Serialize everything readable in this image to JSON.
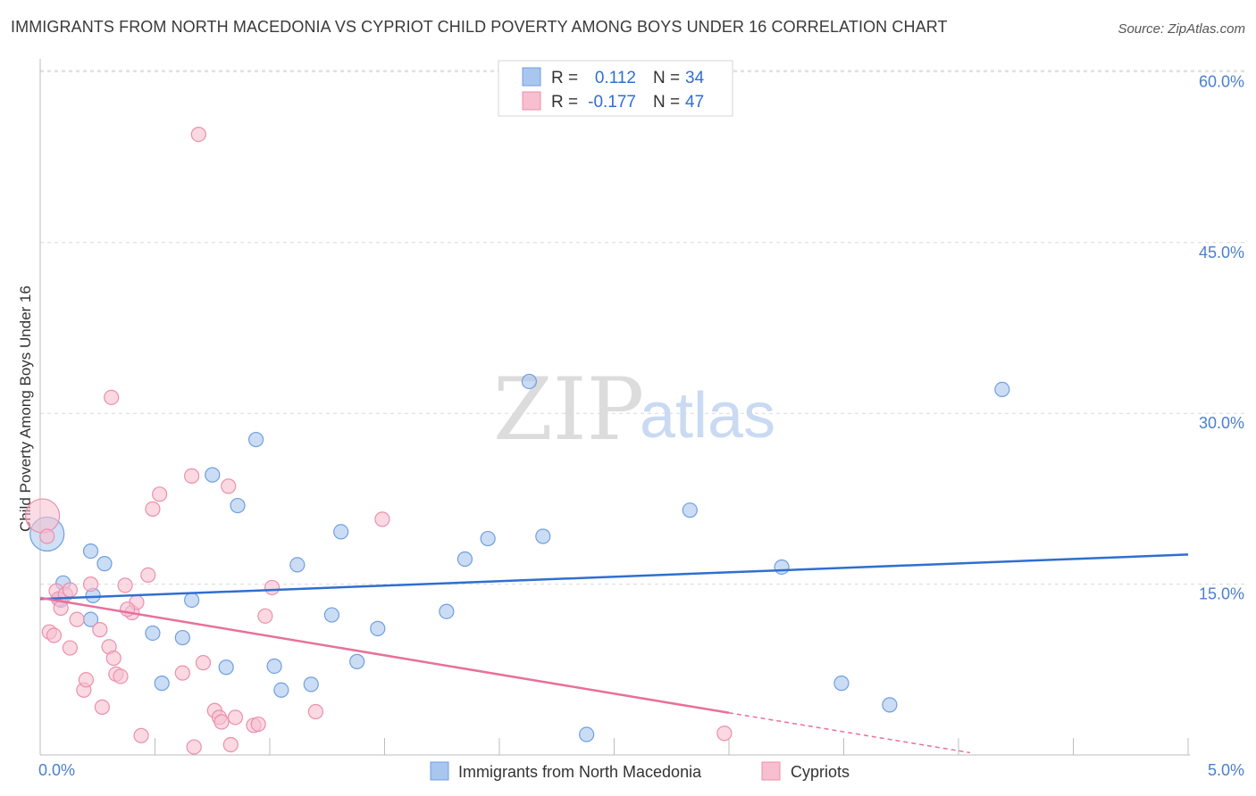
{
  "title": "IMMIGRANTS FROM NORTH MACEDONIA VS CYPRIOT CHILD POVERTY AMONG BOYS UNDER 16 CORRELATION CHART",
  "source": "Source: ZipAtlas.com",
  "watermark": {
    "zip": "ZIP",
    "atlas": "atlas"
  },
  "legend": {
    "rows": [
      {
        "r_label": "R =",
        "r_value": "0.112",
        "n_label": "N =",
        "n_value": "34",
        "color": "#a9c6ef",
        "stroke": "#6f9fe0"
      },
      {
        "r_label": "R =",
        "r_value": "-0.177",
        "n_label": "N =",
        "n_value": "47",
        "color": "#f7bfd0",
        "stroke": "#ec8fac"
      }
    ]
  },
  "chart_data": {
    "type": "scatter",
    "title": "IMMIGRANTS FROM NORTH MACEDONIA VS CYPRIOT CHILD POVERTY AMONG BOYS UNDER 16 CORRELATION CHART",
    "xlabel": "",
    "ylabel": "Child Poverty Among Boys Under 16",
    "xlim": [
      0,
      5
    ],
    "ylim": [
      0,
      60
    ],
    "x_tick_labels": [
      "0.0%",
      "5.0%"
    ],
    "y_ticks": [
      15,
      30,
      45,
      60
    ],
    "y_tick_labels": [
      "15.0%",
      "30.0%",
      "45.0%",
      "60.0%"
    ],
    "series": [
      {
        "name": "Immigrants from North Macedonia",
        "color": "#a9c6ef",
        "stroke": "#6f9fe0",
        "line_color": "#2f6fd0",
        "trend": {
          "x0": 0,
          "y0": 13.7,
          "x1": 5,
          "y1": 17.6
        },
        "points": [
          {
            "x": 0.03,
            "y": 19.4,
            "big": true
          },
          {
            "x": 0.1,
            "y": 15.1
          },
          {
            "x": 0.09,
            "y": 13.6
          },
          {
            "x": 0.22,
            "y": 17.9
          },
          {
            "x": 0.28,
            "y": 16.8
          },
          {
            "x": 0.23,
            "y": 14.0
          },
          {
            "x": 0.22,
            "y": 11.9
          },
          {
            "x": 0.49,
            "y": 10.7
          },
          {
            "x": 0.62,
            "y": 10.3
          },
          {
            "x": 0.53,
            "y": 6.3
          },
          {
            "x": 0.66,
            "y": 13.6
          },
          {
            "x": 0.75,
            "y": 24.6
          },
          {
            "x": 0.86,
            "y": 21.9
          },
          {
            "x": 0.81,
            "y": 7.7
          },
          {
            "x": 0.94,
            "y": 27.7
          },
          {
            "x": 1.02,
            "y": 7.8
          },
          {
            "x": 1.05,
            "y": 5.7
          },
          {
            "x": 1.12,
            "y": 16.7
          },
          {
            "x": 1.18,
            "y": 6.2
          },
          {
            "x": 1.27,
            "y": 12.3
          },
          {
            "x": 1.31,
            "y": 19.6
          },
          {
            "x": 1.38,
            "y": 8.2
          },
          {
            "x": 1.47,
            "y": 11.1
          },
          {
            "x": 1.77,
            "y": 12.6
          },
          {
            "x": 1.85,
            "y": 17.2
          },
          {
            "x": 1.95,
            "y": 19.0
          },
          {
            "x": 2.13,
            "y": 32.8
          },
          {
            "x": 2.19,
            "y": 19.2
          },
          {
            "x": 2.38,
            "y": 1.8
          },
          {
            "x": 2.83,
            "y": 21.5
          },
          {
            "x": 3.23,
            "y": 16.5
          },
          {
            "x": 3.49,
            "y": 6.3
          },
          {
            "x": 3.7,
            "y": 4.4
          },
          {
            "x": 4.19,
            "y": 32.1
          }
        ]
      },
      {
        "name": "Cypriots",
        "color": "#f7bfd0",
        "stroke": "#ec8fac",
        "line_color": "#e8709a",
        "trend": {
          "x0": 0,
          "y0": 13.8,
          "x1": 3.0,
          "y1": 3.7
        },
        "trend_dashed": {
          "x0": 3.0,
          "y0": 3.7,
          "x1": 4.05,
          "y1": 0.2
        },
        "points": [
          {
            "x": 0.01,
            "y": 21.0,
            "big": true
          },
          {
            "x": 0.03,
            "y": 19.2
          },
          {
            "x": 0.07,
            "y": 14.4
          },
          {
            "x": 0.08,
            "y": 13.7
          },
          {
            "x": 0.11,
            "y": 14.1
          },
          {
            "x": 0.09,
            "y": 12.9
          },
          {
            "x": 0.04,
            "y": 10.8
          },
          {
            "x": 0.06,
            "y": 10.5
          },
          {
            "x": 0.13,
            "y": 9.4
          },
          {
            "x": 0.16,
            "y": 11.9
          },
          {
            "x": 0.19,
            "y": 5.7
          },
          {
            "x": 0.2,
            "y": 6.6
          },
          {
            "x": 0.22,
            "y": 15.0
          },
          {
            "x": 0.26,
            "y": 11.0
          },
          {
            "x": 0.27,
            "y": 4.2
          },
          {
            "x": 0.3,
            "y": 9.5
          },
          {
            "x": 0.32,
            "y": 8.5
          },
          {
            "x": 0.33,
            "y": 7.1
          },
          {
            "x": 0.35,
            "y": 6.9
          },
          {
            "x": 0.37,
            "y": 14.9
          },
          {
            "x": 0.4,
            "y": 12.5
          },
          {
            "x": 0.42,
            "y": 13.4
          },
          {
            "x": 0.44,
            "y": 1.7
          },
          {
            "x": 0.47,
            "y": 15.8
          },
          {
            "x": 0.49,
            "y": 21.6
          },
          {
            "x": 0.52,
            "y": 22.9
          },
          {
            "x": 0.31,
            "y": 31.4
          },
          {
            "x": 0.62,
            "y": 7.2
          },
          {
            "x": 0.66,
            "y": 24.5
          },
          {
            "x": 0.67,
            "y": 0.7
          },
          {
            "x": 0.69,
            "y": 54.5
          },
          {
            "x": 0.71,
            "y": 8.1
          },
          {
            "x": 0.76,
            "y": 3.9
          },
          {
            "x": 0.78,
            "y": 3.3
          },
          {
            "x": 0.79,
            "y": 2.9
          },
          {
            "x": 0.82,
            "y": 23.6
          },
          {
            "x": 0.83,
            "y": 0.9
          },
          {
            "x": 0.85,
            "y": 3.3
          },
          {
            "x": 0.93,
            "y": 2.6
          },
          {
            "x": 0.95,
            "y": 2.7
          },
          {
            "x": 0.98,
            "y": 12.2
          },
          {
            "x": 1.01,
            "y": 14.7
          },
          {
            "x": 1.2,
            "y": 3.8
          },
          {
            "x": 1.49,
            "y": 20.7
          },
          {
            "x": 2.98,
            "y": 1.9
          },
          {
            "x": 0.13,
            "y": 14.5
          },
          {
            "x": 0.38,
            "y": 12.8
          }
        ]
      }
    ]
  },
  "bottom_legend": [
    {
      "label": "Immigrants from North Macedonia",
      "color": "#a9c6ef",
      "stroke": "#6f9fe0"
    },
    {
      "label": "Cypriots",
      "color": "#f7bfd0",
      "stroke": "#ec8fac"
    }
  ]
}
